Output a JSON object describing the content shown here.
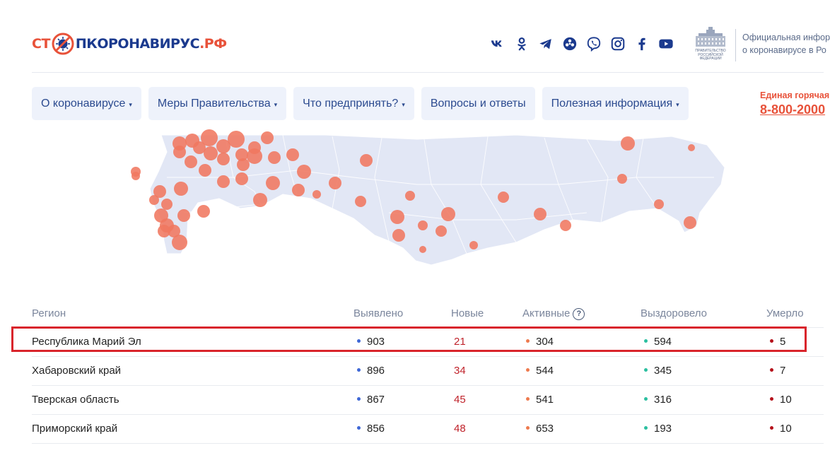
{
  "brand": {
    "logo_part1": "СТ",
    "logo_part2": "ПКОРОНАВИРУС",
    "logo_part3": ".РФ",
    "accent_color": "#e8523a",
    "primary_color": "#1b3a8e"
  },
  "socials": [
    {
      "icon": "vk-icon"
    },
    {
      "icon": "odnoklassniki-icon"
    },
    {
      "icon": "telegram-icon"
    },
    {
      "icon": "mymail-icon"
    },
    {
      "icon": "viber-icon"
    },
    {
      "icon": "instagram-icon"
    },
    {
      "icon": "facebook-icon"
    },
    {
      "icon": "youtube-icon"
    }
  ],
  "gov": {
    "emblem_line1": "ПРАВИТЕЛЬСТВО",
    "emblem_line2": "РОССИЙСКОЙ",
    "emblem_line3": "ФЕДЕРАЦИИ",
    "text_line1": "Официальная инфор",
    "text_line2": "о коронавирусе в Ро"
  },
  "nav": {
    "items": [
      {
        "label": "О коронавирусе",
        "caret": "▾"
      },
      {
        "label": "Меры Правительства",
        "caret": "▾"
      },
      {
        "label": "Что предпринять?",
        "caret": "▾"
      },
      {
        "label": "Вопросы и ответы",
        "caret": ""
      },
      {
        "label": "Полезная информация",
        "caret": "▾"
      }
    ]
  },
  "hotline": {
    "label": "Единая горячая",
    "number": "8-800-2000"
  },
  "table": {
    "headers": {
      "region": "Регион",
      "detected": "Выявлено",
      "new": "Новые",
      "active": "Активные",
      "active_info": "?",
      "recovered": "Выздоровело",
      "died": "Умерло"
    },
    "rows": [
      {
        "region": "Республика Марий Эл",
        "detected": "903",
        "new": "21",
        "active": "304",
        "recovered": "594",
        "died": "5"
      },
      {
        "region": "Хабаровский край",
        "detected": "896",
        "new": "34",
        "active": "544",
        "recovered": "345",
        "died": "7"
      },
      {
        "region": "Тверская область",
        "detected": "867",
        "new": "45",
        "active": "541",
        "recovered": "316",
        "died": "10"
      },
      {
        "region": "Приморский край",
        "detected": "856",
        "new": "48",
        "active": "653",
        "recovered": "193",
        "died": "10"
      }
    ]
  }
}
